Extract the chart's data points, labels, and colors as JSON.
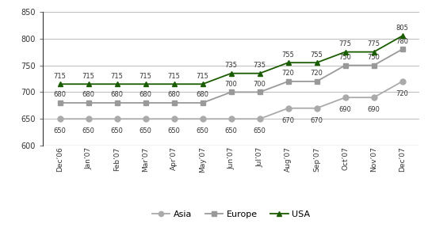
{
  "categories": [
    "Dec’06",
    "Jan’07",
    "Feb’07",
    "Mar’07",
    "Apr’07",
    "May’07",
    "Jun’07",
    "Jul’07",
    "Aug’07",
    "Sep’07",
    "Oct’07",
    "Nov’07",
    "Dec’07"
  ],
  "asia": [
    650,
    650,
    650,
    650,
    650,
    650,
    650,
    650,
    670,
    670,
    690,
    690,
    720
  ],
  "europe": [
    680,
    680,
    680,
    680,
    680,
    680,
    700,
    700,
    720,
    720,
    750,
    750,
    780
  ],
  "usa": [
    715,
    715,
    715,
    715,
    715,
    715,
    735,
    735,
    755,
    755,
    775,
    775,
    805
  ],
  "asia_color": "#aaaaaa",
  "europe_color": "#999999",
  "usa_color": "#1a5c00",
  "asia_marker": "o",
  "europe_marker": "s",
  "usa_marker": "^",
  "ylim": [
    600,
    850
  ],
  "yticks": [
    600,
    650,
    700,
    750,
    800,
    850
  ],
  "background_color": "#ffffff",
  "grid_color": "#bbbbbb",
  "legend_labels": [
    "Asia",
    "Europe",
    "USA"
  ],
  "annotation_fontsize": 6.0,
  "line_width": 1.3,
  "marker_size": 5
}
